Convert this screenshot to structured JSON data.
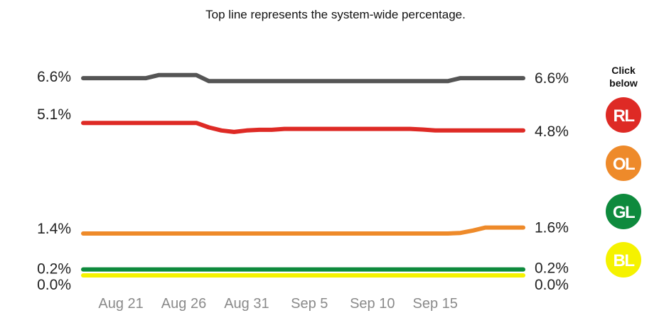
{
  "chart_data": {
    "type": "line",
    "subtitle": "Top line represents the system-wide percentage.",
    "x_tick_labels": [
      "Aug 21",
      "Aug 26",
      "Aug 31",
      "Sep 5",
      "Sep 10",
      "Sep 15"
    ],
    "x_ticks_day_index": [
      3,
      8,
      13,
      18,
      23,
      28
    ],
    "ylim": [
      0.0,
      7.1
    ],
    "series": [
      {
        "key": "system",
        "color": "#555555",
        "start_label": "6.6%",
        "end_label": "6.6%",
        "values": [
          6.6,
          6.6,
          6.6,
          6.6,
          6.6,
          6.6,
          6.7,
          6.7,
          6.7,
          6.7,
          6.5,
          6.5,
          6.5,
          6.5,
          6.5,
          6.5,
          6.5,
          6.5,
          6.5,
          6.5,
          6.5,
          6.5,
          6.5,
          6.5,
          6.5,
          6.5,
          6.5,
          6.5,
          6.5,
          6.5,
          6.6,
          6.6,
          6.6,
          6.6,
          6.6,
          6.6
        ]
      },
      {
        "key": "RL",
        "color": "#de2a25",
        "start_label": "5.1%",
        "end_label": "4.8%",
        "values": [
          5.1,
          5.1,
          5.1,
          5.1,
          5.1,
          5.1,
          5.1,
          5.1,
          5.1,
          5.1,
          4.95,
          4.85,
          4.8,
          4.85,
          4.87,
          4.87,
          4.9,
          4.9,
          4.9,
          4.9,
          4.9,
          4.9,
          4.9,
          4.9,
          4.9,
          4.9,
          4.9,
          4.88,
          4.85,
          4.85,
          4.85,
          4.85,
          4.85,
          4.85,
          4.85,
          4.85
        ]
      },
      {
        "key": "OL",
        "color": "#ee8a2a",
        "start_label": "1.4%",
        "end_label": "1.6%",
        "values": [
          1.4,
          1.4,
          1.4,
          1.4,
          1.4,
          1.4,
          1.4,
          1.4,
          1.4,
          1.4,
          1.4,
          1.4,
          1.4,
          1.4,
          1.4,
          1.4,
          1.4,
          1.4,
          1.4,
          1.4,
          1.4,
          1.4,
          1.4,
          1.4,
          1.4,
          1.4,
          1.4,
          1.4,
          1.4,
          1.4,
          1.42,
          1.5,
          1.6,
          1.6,
          1.6,
          1.6
        ]
      },
      {
        "key": "GL",
        "color": "#0e8a3d",
        "start_label": "0.2%",
        "end_label": "0.2%",
        "values": [
          0.2,
          0.2,
          0.2,
          0.2,
          0.2,
          0.2,
          0.2,
          0.2,
          0.2,
          0.2,
          0.2,
          0.2,
          0.2,
          0.2,
          0.2,
          0.2,
          0.2,
          0.2,
          0.2,
          0.2,
          0.2,
          0.2,
          0.2,
          0.2,
          0.2,
          0.2,
          0.2,
          0.2,
          0.2,
          0.2,
          0.2,
          0.2,
          0.2,
          0.2,
          0.2,
          0.2
        ]
      },
      {
        "key": "BL",
        "color": "#f5f200",
        "start_label": "0.0%",
        "end_label": "0.0%",
        "values": [
          0.0,
          0.0,
          0.0,
          0.0,
          0.0,
          0.0,
          0.0,
          0.0,
          0.0,
          0.0,
          0.0,
          0.0,
          0.0,
          0.0,
          0.0,
          0.0,
          0.0,
          0.0,
          0.0,
          0.0,
          0.0,
          0.0,
          0.0,
          0.0,
          0.0,
          0.0,
          0.0,
          0.0,
          0.0,
          0.0,
          0.0,
          0.0,
          0.0,
          0.0,
          0.0,
          0.0
        ]
      }
    ]
  },
  "legend": {
    "click_label_line1": "Click",
    "click_label_line2": "below",
    "buttons": [
      {
        "label": "RL",
        "color": "#de2a25"
      },
      {
        "label": "OL",
        "color": "#ee8a2a"
      },
      {
        "label": "GL",
        "color": "#0e8a3d"
      },
      {
        "label": "BL",
        "color": "#f5f200"
      }
    ]
  }
}
